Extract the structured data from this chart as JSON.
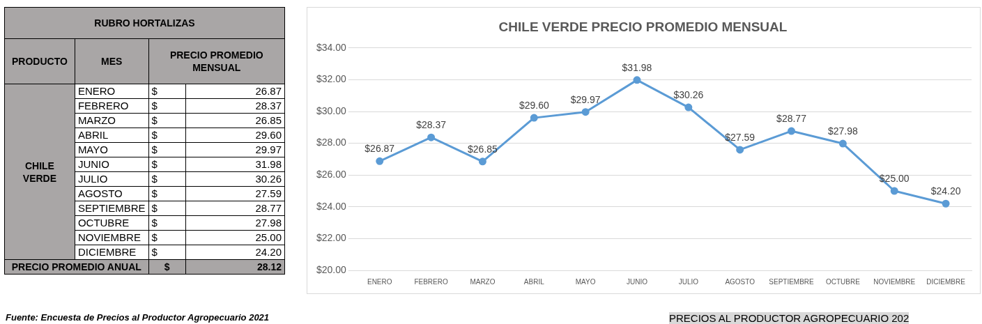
{
  "chart_data": {
    "type": "line",
    "title": "CHILE VERDE PRECIO PROMEDIO MENSUAL",
    "categories": [
      "ENERO",
      "FEBRERO",
      "MARZO",
      "ABRIL",
      "MAYO",
      "JUNIO",
      "JULIO",
      "AGOSTO",
      "SEPTIEMBRE",
      "OCTUBRE",
      "NOVIEMBRE",
      "DICIEMBRE"
    ],
    "series": [
      {
        "color": "#5b9bd5",
        "values": [
          26.87,
          28.37,
          26.85,
          29.6,
          29.97,
          31.98,
          30.26,
          27.59,
          28.77,
          27.98,
          25.0,
          24.2
        ],
        "value_labels": [
          "$26.87",
          "$28.37",
          "$26.85",
          "$29.60",
          "$29.97",
          "$31.98",
          "$30.26",
          "$27.59",
          "$28.77",
          "$27.98",
          "$25.00",
          "$24.20"
        ]
      }
    ],
    "ylim": [
      20,
      34
    ],
    "yticks": [
      {
        "value": 20,
        "label": "$20.00"
      },
      {
        "value": 22,
        "label": "$22.00"
      },
      {
        "value": 24,
        "label": "$24.00"
      },
      {
        "value": 26,
        "label": "$26.00"
      },
      {
        "value": 28,
        "label": "$28.00"
      },
      {
        "value": 30,
        "label": "$30.00"
      },
      {
        "value": 32,
        "label": "$32.00"
      },
      {
        "value": 34,
        "label": "$34.00"
      }
    ],
    "grid": "y",
    "legend": false,
    "marker": "circle",
    "line_style": "solid",
    "annotations": [
      "RUBRO HORTALIZAS",
      "PRODUCTO",
      "MES",
      "PRECIO PROMEDIO MENSUAL",
      "CHILE VERDE",
      "PRECIO PROMEDIO ANUAL",
      "$",
      "28.12",
      "Fuente: Encuesta de Precios al Productor Agropecuario 2021",
      "PRECIOS AL PRODUCTOR AGROPECUARIO 202",
      "26.87",
      "28.37",
      "26.85",
      "29.60",
      "29.97",
      "31.98",
      "30.26",
      "27.59",
      "28.77",
      "27.98",
      "25.00",
      "24.20"
    ]
  }
}
